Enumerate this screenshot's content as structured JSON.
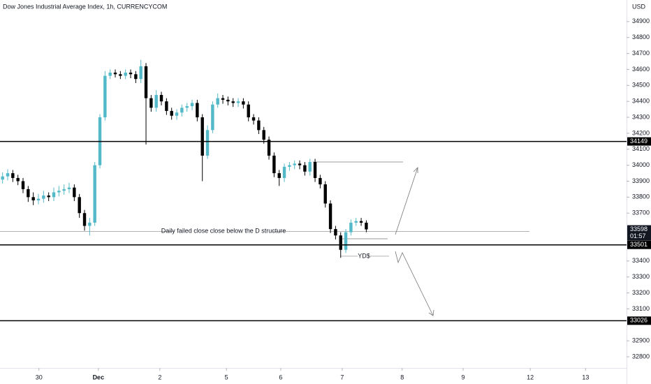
{
  "chart_data": {
    "type": "candlestick",
    "title": "Dow Jones Industrial Average Index, 1h, CURRENCYCOM",
    "y_axis_label": "USD",
    "up_color": "#53b9c9",
    "down_color": "#000000",
    "ylim": [
      32730,
      35035
    ],
    "yticks": [
      34900,
      34800,
      34700,
      34600,
      34500,
      34400,
      34300,
      34200,
      34100,
      34000,
      33900,
      33800,
      33700,
      33400,
      33300,
      33200,
      33100,
      32900,
      32800
    ],
    "xlim": [
      -0.5,
      121.8
    ],
    "xticks": [
      {
        "value": 7.1,
        "label": "30"
      },
      {
        "value": 18.7,
        "label": "Dec"
      },
      {
        "value": 30.7,
        "label": "2"
      },
      {
        "value": 43.7,
        "label": "5"
      },
      {
        "value": 54.3,
        "label": "6"
      },
      {
        "value": 66.3,
        "label": "7"
      },
      {
        "value": 78,
        "label": "8"
      },
      {
        "value": 89.9,
        "label": "9"
      },
      {
        "value": 103,
        "label": "12"
      },
      {
        "value": 113.8,
        "label": "13"
      }
    ],
    "open": [
      33910,
      33930,
      33950,
      33920,
      33900,
      33850,
      33800,
      33780,
      33790,
      33810,
      33800,
      33830,
      33840,
      33850,
      33860,
      33800,
      33700,
      33620,
      33640,
      34000,
      34300,
      34560,
      34580,
      34570,
      34560,
      34580,
      34570,
      34540,
      34620,
      34420,
      34360,
      34440,
      34400,
      34340,
      34310,
      34330,
      34360,
      34370,
      34390,
      34300,
      34060,
      34220,
      34380,
      34420,
      34410,
      34400,
      34390,
      34400,
      34380,
      34300,
      34280,
      34220,
      34160,
      34060,
      33950,
      33920,
      33990,
      34000,
      34010,
      34000,
      33960,
      34020,
      33920,
      33880,
      33760,
      33600,
      33560,
      33470,
      33580,
      33640,
      33650,
      33640
    ],
    "high": [
      33955,
      33975,
      33970,
      33940,
      33920,
      33870,
      33830,
      33820,
      33840,
      33830,
      33860,
      33870,
      33880,
      33890,
      33880,
      33820,
      33720,
      33670,
      34020,
      34320,
      34590,
      34600,
      34600,
      34590,
      34600,
      34600,
      34590,
      34660,
      34640,
      34440,
      34470,
      34460,
      34420,
      34360,
      34350,
      34380,
      34390,
      34410,
      34410,
      34320,
      34250,
      34400,
      34450,
      34440,
      34430,
      34420,
      34420,
      34420,
      34400,
      34320,
      34300,
      34240,
      34180,
      34080,
      33970,
      34010,
      34020,
      34030,
      34030,
      34020,
      34040,
      34040,
      33940,
      33900,
      33780,
      33620,
      33580,
      33600,
      33660,
      33670,
      33670,
      33655
    ],
    "low": [
      33885,
      33905,
      33895,
      33875,
      33825,
      33770,
      33750,
      33755,
      33765,
      33775,
      33775,
      33805,
      33815,
      33825,
      33775,
      33670,
      33590,
      33560,
      33620,
      33980,
      34280,
      34540,
      34550,
      34540,
      34540,
      34545,
      34515,
      34515,
      34130,
      34335,
      34335,
      34375,
      34315,
      34285,
      34285,
      34305,
      34335,
      34345,
      34275,
      33900,
      34040,
      34200,
      34360,
      34385,
      34375,
      34365,
      34365,
      34355,
      34275,
      34255,
      34195,
      34135,
      34035,
      33925,
      33870,
      33895,
      33965,
      33975,
      33975,
      33935,
      33935,
      33895,
      33855,
      33735,
      33575,
      33535,
      33420,
      33450,
      33560,
      33620,
      33620,
      33580
    ],
    "close": [
      33930,
      33950,
      33920,
      33900,
      33850,
      33800,
      33780,
      33790,
      33810,
      33800,
      33830,
      33840,
      33850,
      33860,
      33800,
      33700,
      33620,
      33640,
      34000,
      34300,
      34560,
      34580,
      34570,
      34560,
      34580,
      34570,
      34540,
      34620,
      34420,
      34360,
      34440,
      34400,
      34340,
      34310,
      34330,
      34360,
      34370,
      34390,
      34300,
      34060,
      34220,
      34380,
      34420,
      34410,
      34400,
      34390,
      34400,
      34380,
      34300,
      34280,
      34220,
      34160,
      34060,
      33950,
      33920,
      33990,
      34000,
      34010,
      34000,
      33960,
      34020,
      33920,
      33880,
      33760,
      33600,
      33560,
      33470,
      33580,
      33640,
      33650,
      33640,
      33598
    ],
    "price_lines": [
      34149,
      33501,
      33026
    ],
    "current_price": 33598,
    "countdown": "01:57",
    "annotations": [
      {
        "text": "Daily failed close close below the D structure",
        "y": 33586
      },
      {
        "text": "YD$",
        "y": 33430
      }
    ]
  }
}
